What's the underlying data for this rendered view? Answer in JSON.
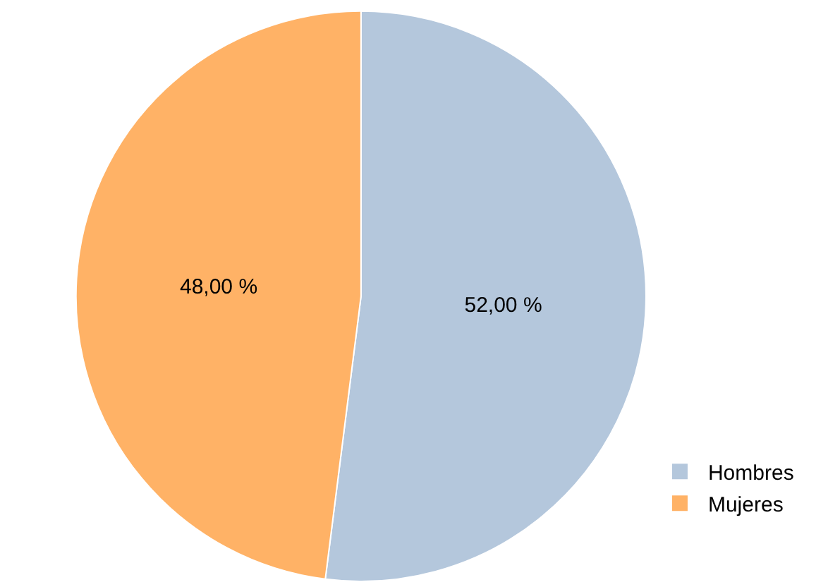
{
  "chart_data": {
    "type": "pie",
    "categories": [
      "Hombres",
      "Mujeres"
    ],
    "values": [
      52,
      48
    ],
    "colors": [
      "#b4c7dc",
      "#ffb266"
    ],
    "value_labels": [
      "52,00 %",
      "48,00 %"
    ],
    "legend": "bottom right"
  }
}
